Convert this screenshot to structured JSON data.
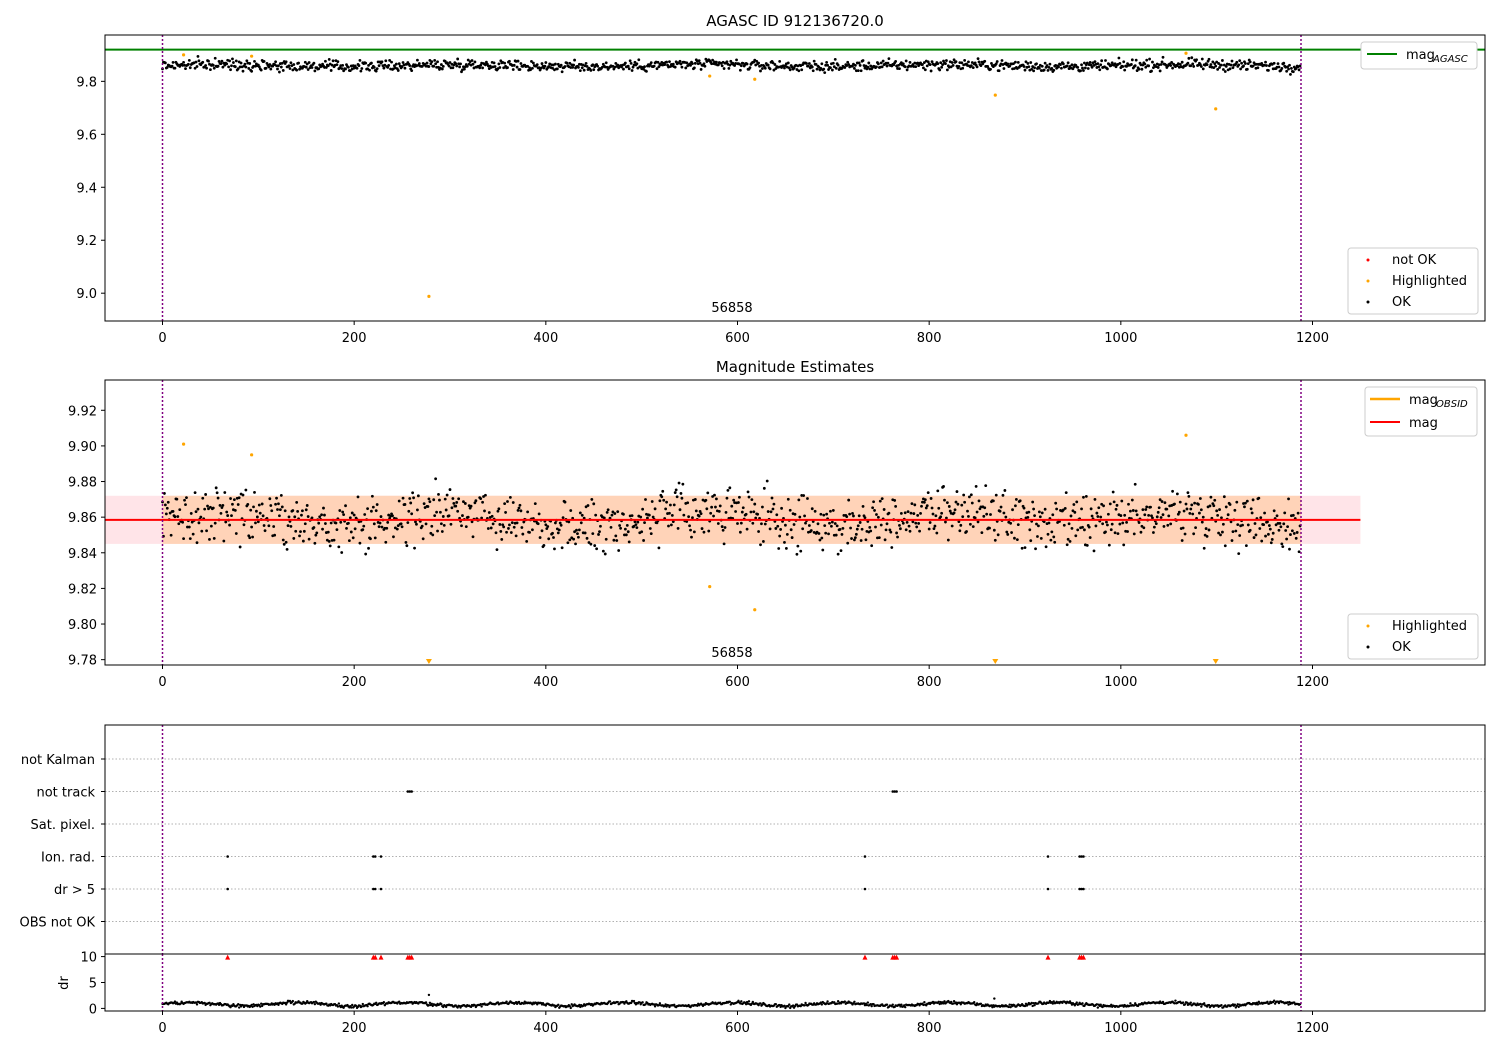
{
  "chart_data": [
    {
      "type": "scatter",
      "title": "AGASC ID 912136720.0",
      "xlim": [
        -60,
        1380
      ],
      "ylim": [
        8.895,
        9.975
      ],
      "xticks": [
        0,
        200,
        400,
        600,
        800,
        1000,
        1200
      ],
      "yticks": [
        9.0,
        9.2,
        9.4,
        9.6,
        9.8
      ],
      "ytick_labels": [
        "9.0",
        "9.2",
        "9.4",
        "9.6",
        "9.8"
      ],
      "grid": false,
      "mag_agasc": 9.92,
      "vlines": [
        0,
        1188
      ],
      "annotation": {
        "text": "56858",
        "x": 600
      },
      "series": [
        {
          "name": "not OK",
          "color": "#ff0000",
          "x": [],
          "y": []
        },
        {
          "name": "Highlighted",
          "color": "#ffa500",
          "x": [
            22,
            93,
            571,
            618,
            869,
            1068,
            1099,
            278
          ],
          "y": [
            9.9,
            9.895,
            9.82,
            9.808,
            9.748,
            9.906,
            9.696,
            8.988
          ]
        },
        {
          "name": "OK",
          "color": "#000000",
          "n": 1188,
          "center": 9.86,
          "spread": 0.018
        }
      ],
      "legends": [
        {
          "position": "upper right",
          "entries": [
            {
              "label": "mag",
              "sub": "AGASC",
              "color": "#008000",
              "kind": "line"
            }
          ]
        },
        {
          "position": "lower right",
          "entries": [
            {
              "label": "not OK",
              "color": "#ff0000",
              "kind": "marker"
            },
            {
              "label": "Highlighted",
              "color": "#ffa500",
              "kind": "marker"
            },
            {
              "label": "OK",
              "color": "#000000",
              "kind": "marker"
            }
          ]
        }
      ]
    },
    {
      "type": "scatter",
      "title": "Magnitude Estimates",
      "xlim": [
        -60,
        1380
      ],
      "ylim": [
        9.777,
        9.937
      ],
      "xticks": [
        0,
        200,
        400,
        600,
        800,
        1000,
        1200
      ],
      "yticks": [
        9.78,
        9.8,
        9.82,
        9.84,
        9.86,
        9.88,
        9.9,
        9.92
      ],
      "ytick_labels": [
        "9.78",
        "9.80",
        "9.82",
        "9.84",
        "9.86",
        "9.88",
        "9.90",
        "9.92"
      ],
      "grid": false,
      "mag": 9.8585,
      "band": [
        9.845,
        9.872
      ],
      "band_x": [
        -60,
        1250
      ],
      "mag_obsid_band_x": [
        0,
        1188
      ],
      "vlines": [
        0,
        1188
      ],
      "annotation": {
        "text": "56858",
        "x": 600
      },
      "series": [
        {
          "name": "Highlighted",
          "color": "#ffa500",
          "x": [
            22,
            93,
            571,
            618
          ],
          "y": [
            9.901,
            9.895,
            9.821,
            9.808
          ],
          "clipped_x": [
            278,
            869,
            1099
          ],
          "upper": {
            "x": [
              1068
            ],
            "y": [
              9.906
            ]
          }
        },
        {
          "name": "OK",
          "color": "#000000",
          "n": 1188,
          "center": 9.859,
          "spread": 0.013
        }
      ],
      "legends": [
        {
          "position": "upper right",
          "entries": [
            {
              "label": "mag",
              "sub": "OBSID",
              "color": "#ffa500",
              "kind": "line"
            },
            {
              "label": "mag",
              "sub": "",
              "color": "#ff0000",
              "kind": "line"
            }
          ]
        },
        {
          "position": "lower right",
          "entries": [
            {
              "label": "Highlighted",
              "color": "#ffa500",
              "kind": "marker"
            },
            {
              "label": "OK",
              "color": "#000000",
              "kind": "marker"
            }
          ]
        }
      ]
    },
    {
      "type": "scatter",
      "title": "",
      "xlim": [
        -60,
        1380
      ],
      "categories": [
        "not Kalman",
        "not track",
        "Sat. pixel.",
        "Ion. rad.",
        "dr > 5",
        "OBS not OK"
      ],
      "grid": "dotted",
      "vlines": [
        0,
        1188
      ],
      "flags": {
        "not Kalman": [],
        "not track": [
          256,
          258,
          260,
          762,
          764,
          766
        ],
        "Sat. pixel.": [],
        "Ion. rad.": [
          68,
          220,
          222,
          228,
          733,
          924,
          957,
          959,
          961
        ],
        "dr > 5": [
          68,
          220,
          222,
          228,
          733,
          924,
          957,
          959,
          961
        ],
        "OBS not OK": []
      }
    },
    {
      "type": "scatter",
      "title": "",
      "xlim": [
        -60,
        1380
      ],
      "ylim": [
        -0.5,
        10.5
      ],
      "ylabel": "dr",
      "yticks": [
        0,
        5,
        10
      ],
      "ytick_labels": [
        "0",
        "5",
        "10"
      ],
      "xticks": [
        0,
        200,
        400,
        600,
        800,
        1000,
        1200
      ],
      "vlines": [
        0,
        1188
      ],
      "clipped_markers_x": [
        68,
        220,
        222,
        228,
        256,
        258,
        260,
        733,
        762,
        764,
        766,
        924,
        957,
        959,
        961
      ],
      "outliers": {
        "x": [
          278,
          868
        ],
        "y": [
          2.6,
          1.9
        ]
      }
    }
  ]
}
